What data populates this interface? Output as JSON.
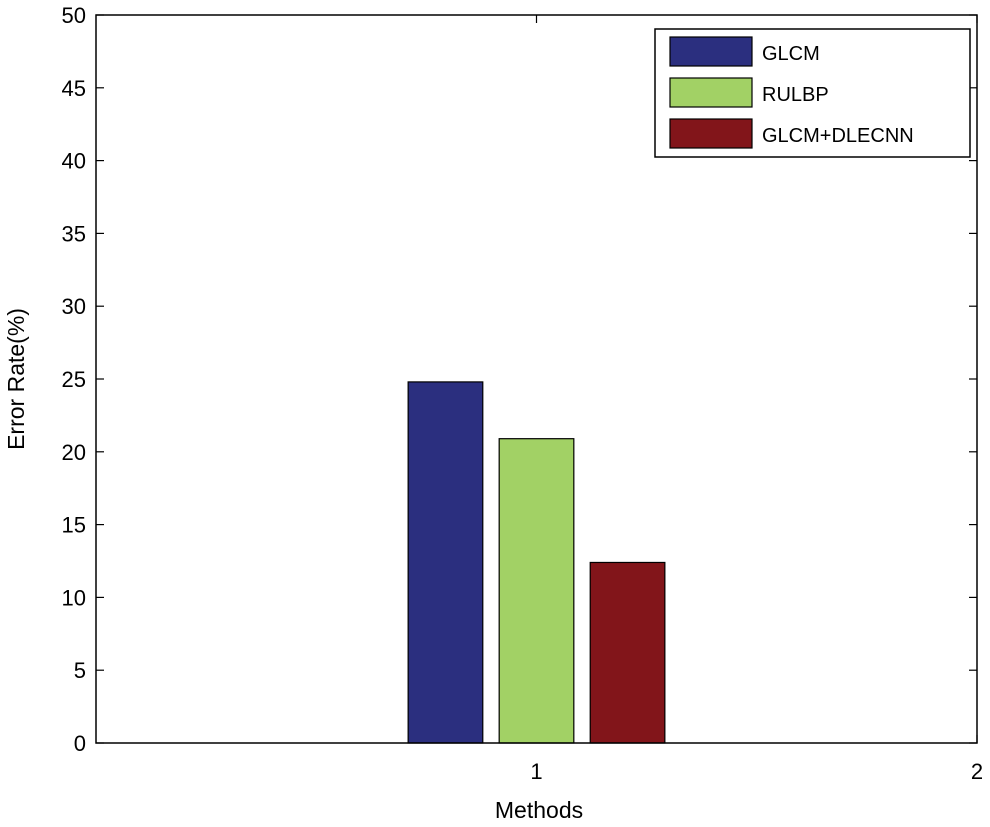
{
  "chart_data": {
    "type": "bar",
    "title": "",
    "xlabel": "Methods",
    "ylabel": "Error Rate(%)",
    "ylim": [
      0,
      50
    ],
    "yticks": [
      "0",
      "5",
      "10",
      "15",
      "20",
      "25",
      "30",
      "35",
      "40",
      "45",
      "50"
    ],
    "xlim": [
      0,
      2
    ],
    "xticks": [
      "1",
      "2"
    ],
    "categories": [
      "1"
    ],
    "series": [
      {
        "name": "GLCM",
        "color": "#2b2f7f",
        "values": [
          24.8
        ]
      },
      {
        "name": "RULBP",
        "color": "#a2d165",
        "values": [
          20.9
        ]
      },
      {
        "name": "GLCM+DLECNN",
        "color": "#82151a",
        "values": [
          12.4
        ]
      }
    ],
    "legend": "top-right",
    "grid": false
  }
}
